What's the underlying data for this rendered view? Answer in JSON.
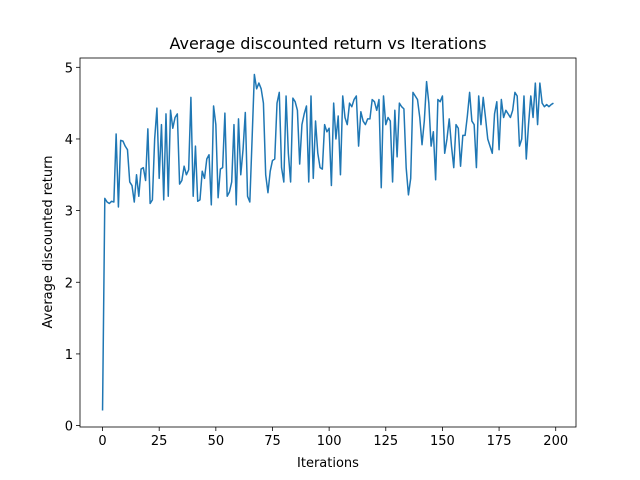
{
  "chart_data": {
    "type": "line",
    "title": "Average discounted return vs Iterations",
    "x_label": "Iterations",
    "y_label": "Average discounted return",
    "color": "#1f77b4",
    "xlim": [
      -9.95,
      208.95
    ],
    "ylim": [
      -0.02,
      5.13
    ],
    "xticks": [
      0,
      25,
      50,
      75,
      100,
      125,
      150,
      175,
      200
    ],
    "yticks": [
      0,
      1,
      2,
      3,
      4,
      5
    ],
    "x": [
      0,
      1,
      2,
      3,
      4,
      5,
      6,
      7,
      8,
      9,
      10,
      11,
      12,
      13,
      14,
      15,
      16,
      17,
      18,
      19,
      20,
      21,
      22,
      23,
      24,
      25,
      26,
      27,
      28,
      29,
      30,
      31,
      32,
      33,
      34,
      35,
      36,
      37,
      38,
      39,
      40,
      41,
      42,
      43,
      44,
      45,
      46,
      47,
      48,
      49,
      50,
      51,
      52,
      53,
      54,
      55,
      56,
      57,
      58,
      59,
      60,
      61,
      62,
      63,
      64,
      65,
      66,
      67,
      68,
      69,
      70,
      71,
      72,
      73,
      74,
      75,
      76,
      77,
      78,
      79,
      80,
      81,
      82,
      83,
      84,
      85,
      86,
      87,
      88,
      89,
      90,
      91,
      92,
      93,
      94,
      95,
      96,
      97,
      98,
      99,
      100,
      101,
      102,
      103,
      104,
      105,
      106,
      107,
      108,
      109,
      110,
      111,
      112,
      113,
      114,
      115,
      116,
      117,
      118,
      119,
      120,
      121,
      122,
      123,
      124,
      125,
      126,
      127,
      128,
      129,
      130,
      131,
      132,
      133,
      134,
      135,
      136,
      137,
      138,
      139,
      140,
      141,
      142,
      143,
      144,
      145,
      146,
      147,
      148,
      149,
      150,
      151,
      152,
      153,
      154,
      155,
      156,
      157,
      158,
      159,
      160,
      161,
      162,
      163,
      164,
      165,
      166,
      167,
      168,
      169,
      170,
      171,
      172,
      173,
      174,
      175,
      176,
      177,
      178,
      179,
      180,
      181,
      182,
      183,
      184,
      185,
      186,
      187,
      188,
      189,
      190,
      191,
      192,
      193,
      194,
      195,
      196,
      197,
      198,
      199
    ],
    "values": [
      0.21,
      3.17,
      3.12,
      3.1,
      3.13,
      3.12,
      4.07,
      3.05,
      3.98,
      3.97,
      3.9,
      3.85,
      3.4,
      3.35,
      3.12,
      3.5,
      3.2,
      3.58,
      3.6,
      3.42,
      4.14,
      3.1,
      3.15,
      4.0,
      4.43,
      3.45,
      4.2,
      3.15,
      4.35,
      3.2,
      4.4,
      4.15,
      4.3,
      4.35,
      3.37,
      3.42,
      3.62,
      3.5,
      3.57,
      4.58,
      3.2,
      3.9,
      3.13,
      3.15,
      3.55,
      3.45,
      3.72,
      3.78,
      3.08,
      4.46,
      4.2,
      3.18,
      3.58,
      3.6,
      4.36,
      3.2,
      3.26,
      3.4,
      4.2,
      3.08,
      4.28,
      3.5,
      3.85,
      4.37,
      3.2,
      3.12,
      4.0,
      4.9,
      4.7,
      4.78,
      4.7,
      4.5,
      3.5,
      3.25,
      3.55,
      3.7,
      3.72,
      4.5,
      4.65,
      3.6,
      3.4,
      4.6,
      3.8,
      3.4,
      4.57,
      4.52,
      4.4,
      3.65,
      4.2,
      4.35,
      4.46,
      3.4,
      4.6,
      3.45,
      4.25,
      3.8,
      3.6,
      3.58,
      4.2,
      4.1,
      4.15,
      3.35,
      4.5,
      4.0,
      4.32,
      3.5,
      4.6,
      4.3,
      4.2,
      4.5,
      4.45,
      4.55,
      4.6,
      3.9,
      4.38,
      4.25,
      4.2,
      4.28,
      4.28,
      4.55,
      4.52,
      4.4,
      4.55,
      3.32,
      4.6,
      4.2,
      4.3,
      4.25,
      3.4,
      4.4,
      3.75,
      4.5,
      4.45,
      4.42,
      3.6,
      3.22,
      3.45,
      4.65,
      4.6,
      4.55,
      4.3,
      3.92,
      4.25,
      4.8,
      4.5,
      3.9,
      4.1,
      3.43,
      4.55,
      4.52,
      4.6,
      3.8,
      4.0,
      4.28,
      3.9,
      3.6,
      4.2,
      4.15,
      3.62,
      4.05,
      4.05,
      4.32,
      4.65,
      4.25,
      4.2,
      3.6,
      4.6,
      4.2,
      4.58,
      4.3,
      4.0,
      3.9,
      3.8,
      4.35,
      4.52,
      3.85,
      4.55,
      4.3,
      4.4,
      4.35,
      4.3,
      4.4,
      4.65,
      4.6,
      3.9,
      4.0,
      4.6,
      3.72,
      4.2,
      4.6,
      4.3,
      4.78,
      4.2,
      4.78,
      4.5,
      4.45,
      4.48,
      4.45,
      4.48,
      4.5
    ]
  }
}
